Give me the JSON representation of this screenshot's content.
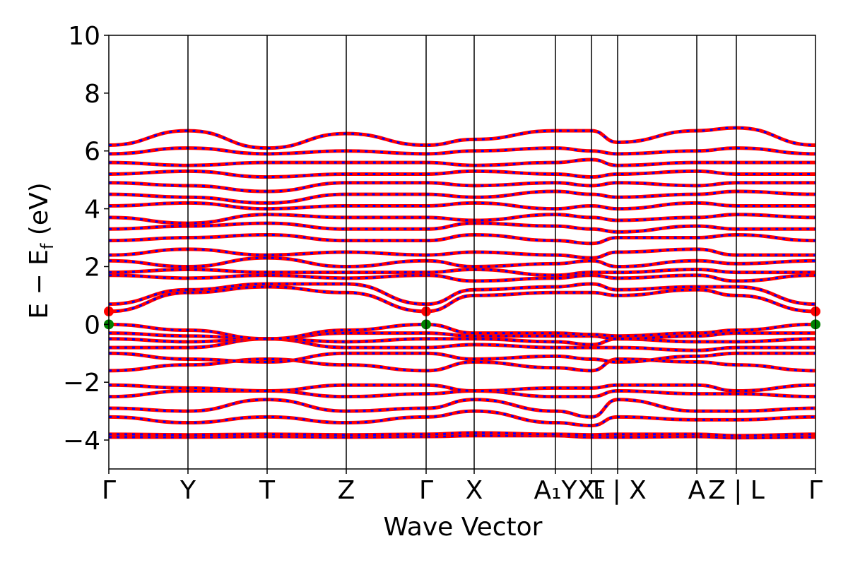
{
  "chart_data": {
    "type": "line",
    "title": "",
    "xlabel": "Wave Vector",
    "ylabel": {
      "main": "E − E",
      "sub": "f",
      "unit": " (eV)"
    },
    "ylim": [
      -5,
      10
    ],
    "yticks": [
      10,
      8,
      6,
      4,
      2,
      0,
      -2,
      -4
    ],
    "ytick_labels": [
      "10",
      "8",
      "6",
      "4",
      "2",
      "0",
      "−2",
      "−4"
    ],
    "xlim": [
      0,
      1
    ],
    "kpoints": [
      {
        "label": "Γ",
        "x": 0.0
      },
      {
        "label": "Y",
        "x": 0.112
      },
      {
        "label": "T",
        "x": 0.224
      },
      {
        "label": "Z",
        "x": 0.336
      },
      {
        "label": "Γ",
        "x": 0.449
      },
      {
        "label": "X",
        "x": 0.517
      },
      {
        "label": "A₁Y",
        "x": 0.632
      },
      {
        "label": "X₁",
        "x": 0.683
      },
      {
        "label": "T | X",
        "x": 0.72
      },
      {
        "label": "A",
        "x": 0.832
      },
      {
        "label": "Z | L",
        "x": 0.888
      },
      {
        "label": "Γ",
        "x": 1.0
      }
    ],
    "grid": false,
    "legend": "none",
    "series_colors": {
      "spin_up": "#ff0000",
      "spin_down": "#0000ff"
    },
    "markers": [
      {
        "x": 0.0,
        "y": 0.45,
        "color": "#ff0000",
        "meaning": "CBM"
      },
      {
        "x": 0.449,
        "y": 0.45,
        "color": "#ff0000",
        "meaning": "CBM"
      },
      {
        "x": 1.0,
        "y": 0.45,
        "color": "#ff0000",
        "meaning": "CBM"
      },
      {
        "x": 0.0,
        "y": 0.0,
        "color": "#008000",
        "meaning": "VBM"
      },
      {
        "x": 0.449,
        "y": 0.0,
        "color": "#008000",
        "meaning": "VBM"
      },
      {
        "x": 1.0,
        "y": 0.0,
        "color": "#008000",
        "meaning": "VBM"
      }
    ],
    "bands": [
      {
        "y": [
          -3.9,
          -3.9,
          -3.88,
          -3.9,
          -3.88,
          -3.85,
          -3.85,
          -3.9,
          -3.9,
          -3.88,
          -3.92,
          -3.9
        ]
      },
      {
        "y": [
          -3.8,
          -3.82,
          -3.8,
          -3.82,
          -3.8,
          -3.75,
          -3.8,
          -3.82,
          -3.8,
          -3.8,
          -3.85,
          -3.8
        ]
      },
      {
        "y": [
          -3.2,
          -3.4,
          -3.2,
          -3.4,
          -3.2,
          -3.0,
          -3.4,
          -3.5,
          -3.2,
          -3.3,
          -3.3,
          -3.2
        ]
      },
      {
        "y": [
          -2.9,
          -3.0,
          -2.6,
          -3.0,
          -2.9,
          -2.6,
          -3.0,
          -3.2,
          -2.6,
          -3.0,
          -3.0,
          -2.9
        ]
      },
      {
        "y": [
          -2.5,
          -2.3,
          -2.3,
          -2.5,
          -2.4,
          -2.3,
          -2.5,
          -2.5,
          -2.3,
          -2.4,
          -2.4,
          -2.5
        ]
      },
      {
        "y": [
          -2.1,
          -2.2,
          -2.3,
          -2.1,
          -2.1,
          -2.3,
          -2.2,
          -2.2,
          -2.1,
          -2.1,
          -2.3,
          -2.1
        ]
      },
      {
        "y": [
          -1.6,
          -1.4,
          -1.2,
          -1.4,
          -1.6,
          -1.3,
          -1.5,
          -1.6,
          -1.2,
          -1.3,
          -1.4,
          -1.6
        ]
      },
      {
        "y": [
          -1.0,
          -1.2,
          -1.3,
          -1.0,
          -1.0,
          -1.2,
          -1.1,
          -1.2,
          -1.3,
          -1.1,
          -1.0,
          -1.0
        ]
      },
      {
        "y": [
          -0.8,
          -0.8,
          -0.5,
          -0.8,
          -0.8,
          -0.7,
          -0.8,
          -0.8,
          -0.8,
          -0.9,
          -0.8,
          -0.8
        ]
      },
      {
        "y": [
          -0.5,
          -0.6,
          -0.5,
          -0.6,
          -0.5,
          -0.5,
          -0.6,
          -0.7,
          -0.5,
          -0.6,
          -0.6,
          -0.5
        ]
      },
      {
        "y": [
          -0.3,
          -0.4,
          -0.5,
          -0.3,
          -0.3,
          -0.4,
          -0.4,
          -0.4,
          -0.5,
          -0.4,
          -0.3,
          -0.3
        ]
      },
      {
        "y": [
          0.0,
          -0.2,
          -0.5,
          -0.2,
          0.0,
          -0.3,
          -0.3,
          -0.35,
          -0.4,
          -0.3,
          -0.2,
          0.0
        ]
      },
      {
        "y": [
          0.45,
          1.1,
          1.3,
          1.1,
          0.45,
          1.0,
          1.1,
          1.1,
          1.0,
          1.2,
          1.0,
          0.45
        ]
      },
      {
        "y": [
          0.7,
          1.2,
          1.4,
          1.4,
          0.7,
          1.2,
          1.3,
          1.4,
          1.2,
          1.3,
          1.3,
          0.7
        ]
      },
      {
        "y": [
          1.7,
          1.6,
          1.7,
          1.6,
          1.7,
          1.5,
          1.6,
          1.7,
          1.6,
          1.7,
          1.5,
          1.7
        ]
      },
      {
        "y": [
          1.8,
          1.9,
          1.8,
          1.8,
          1.8,
          1.9,
          1.7,
          1.8,
          1.8,
          1.9,
          1.8,
          1.8
        ]
      },
      {
        "y": [
          2.2,
          2.0,
          2.3,
          2.0,
          2.2,
          2.0,
          2.1,
          2.2,
          2.0,
          2.2,
          2.1,
          2.2
        ]
      },
      {
        "y": [
          2.4,
          2.6,
          2.4,
          2.5,
          2.4,
          2.5,
          2.4,
          2.3,
          2.5,
          2.6,
          2.4,
          2.4
        ]
      },
      {
        "y": [
          2.9,
          3.0,
          3.1,
          2.9,
          2.9,
          3.1,
          2.9,
          2.8,
          3.0,
          3.0,
          3.1,
          2.9
        ]
      },
      {
        "y": [
          3.3,
          3.4,
          3.5,
          3.3,
          3.3,
          3.5,
          3.4,
          3.3,
          3.2,
          3.4,
          3.3,
          3.3
        ]
      },
      {
        "y": [
          3.7,
          3.5,
          3.8,
          3.7,
          3.7,
          3.6,
          3.8,
          3.7,
          3.6,
          3.7,
          3.8,
          3.7
        ]
      },
      {
        "y": [
          4.1,
          4.2,
          4.0,
          4.1,
          4.1,
          4.2,
          4.0,
          4.1,
          4.0,
          4.2,
          4.1,
          4.1
        ]
      },
      {
        "y": [
          4.5,
          4.4,
          4.2,
          4.5,
          4.5,
          4.4,
          4.6,
          4.5,
          4.4,
          4.5,
          4.6,
          4.5
        ]
      },
      {
        "y": [
          4.9,
          4.8,
          4.6,
          4.9,
          4.9,
          4.8,
          4.9,
          4.8,
          4.9,
          4.8,
          4.9,
          4.9
        ]
      },
      {
        "y": [
          5.2,
          5.3,
          5.1,
          5.2,
          5.2,
          5.3,
          5.2,
          5.1,
          5.2,
          5.3,
          5.2,
          5.2
        ]
      },
      {
        "y": [
          5.6,
          5.5,
          5.6,
          5.6,
          5.6,
          5.5,
          5.6,
          5.7,
          5.5,
          5.6,
          5.6,
          5.6
        ]
      },
      {
        "y": [
          5.9,
          6.1,
          5.9,
          6.0,
          5.9,
          6.0,
          6.1,
          6.0,
          5.9,
          6.0,
          6.1,
          5.9
        ]
      },
      {
        "y": [
          6.2,
          6.7,
          6.1,
          6.6,
          6.2,
          6.4,
          6.7,
          6.7,
          6.3,
          6.7,
          6.8,
          6.2
        ]
      }
    ]
  }
}
